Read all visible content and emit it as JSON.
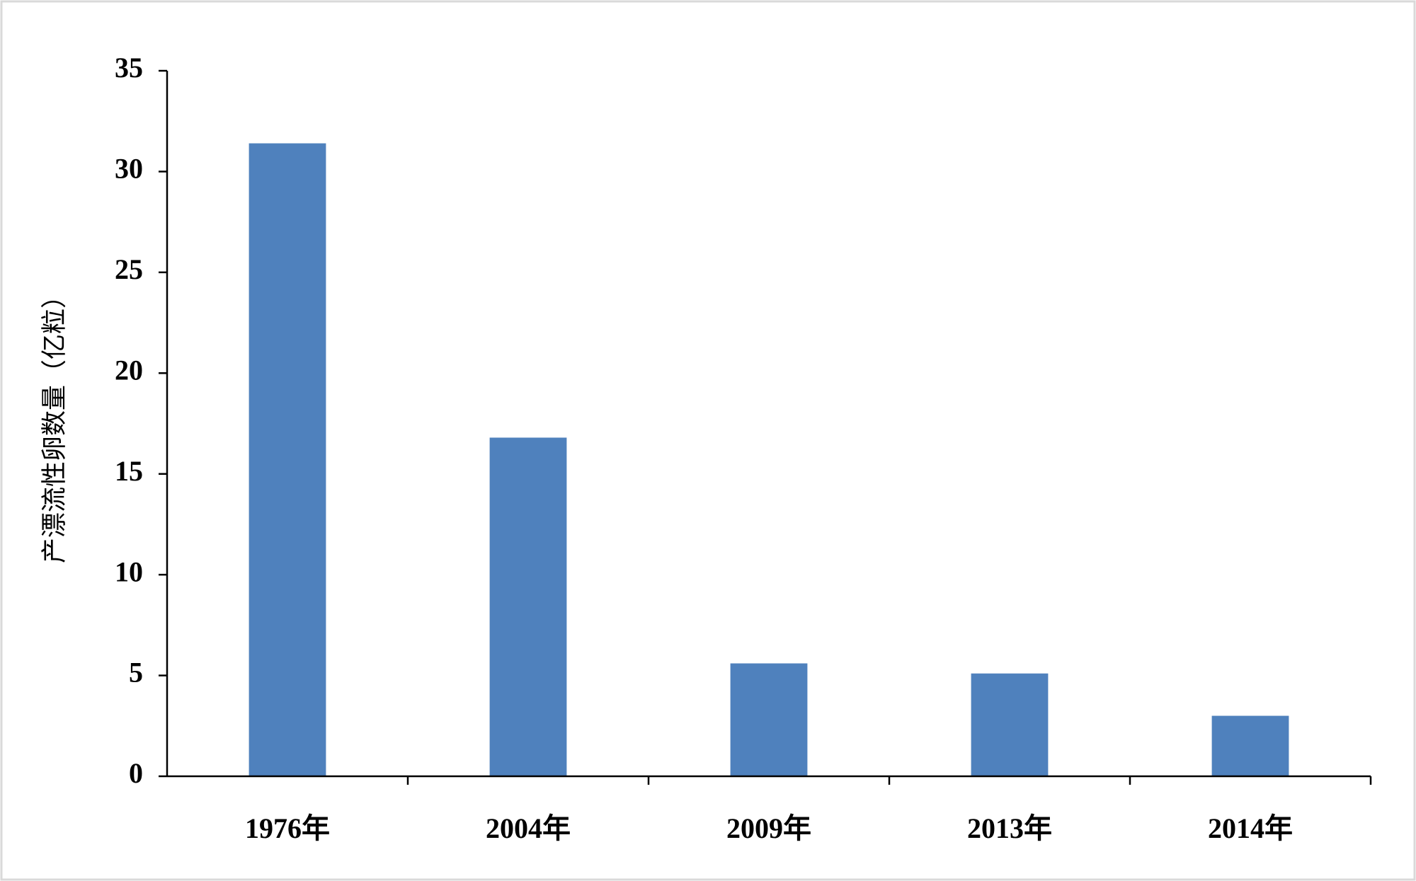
{
  "chart_data": {
    "type": "bar",
    "y_label": "产漂流性卵数量（亿粒）",
    "categories": [
      "1976年",
      "2004年",
      "2009年",
      "2013年",
      "2014年"
    ],
    "values": [
      31.4,
      16.8,
      5.6,
      5.1,
      3.0
    ],
    "color": "#4f81bd",
    "ylim": [
      0,
      35
    ],
    "yticks": [
      0,
      5,
      10,
      15,
      20,
      25,
      30,
      35
    ],
    "grid": false
  }
}
